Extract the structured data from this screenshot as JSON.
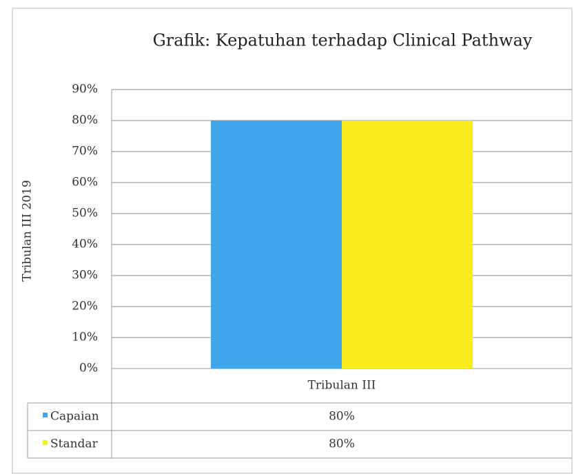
{
  "chart_data": {
    "type": "bar",
    "title": "Grafik: Kepatuhan terhadap Clinical Pathway",
    "y_label": "Tribulan III 2019",
    "categories": [
      "Tribulan III"
    ],
    "series": [
      {
        "name": "Capaian",
        "color": "#41a5ec",
        "values": [
          80
        ],
        "value_labels": [
          "80%"
        ]
      },
      {
        "name": "Standar",
        "color": "#f8ec1c",
        "values": [
          80
        ],
        "value_labels": [
          "80%"
        ]
      }
    ],
    "ylim": [
      0,
      90
    ],
    "yticks": [
      {
        "value": 0,
        "label": "0%"
      },
      {
        "value": 10,
        "label": "10%"
      },
      {
        "value": 20,
        "label": "20%"
      },
      {
        "value": 30,
        "label": "30%"
      },
      {
        "value": 40,
        "label": "40%"
      },
      {
        "value": 50,
        "label": "50%"
      },
      {
        "value": 60,
        "label": "60%"
      },
      {
        "value": 70,
        "label": "70%"
      },
      {
        "value": 80,
        "label": "80%"
      },
      {
        "value": 90,
        "label": "90%"
      }
    ],
    "grid": true
  }
}
